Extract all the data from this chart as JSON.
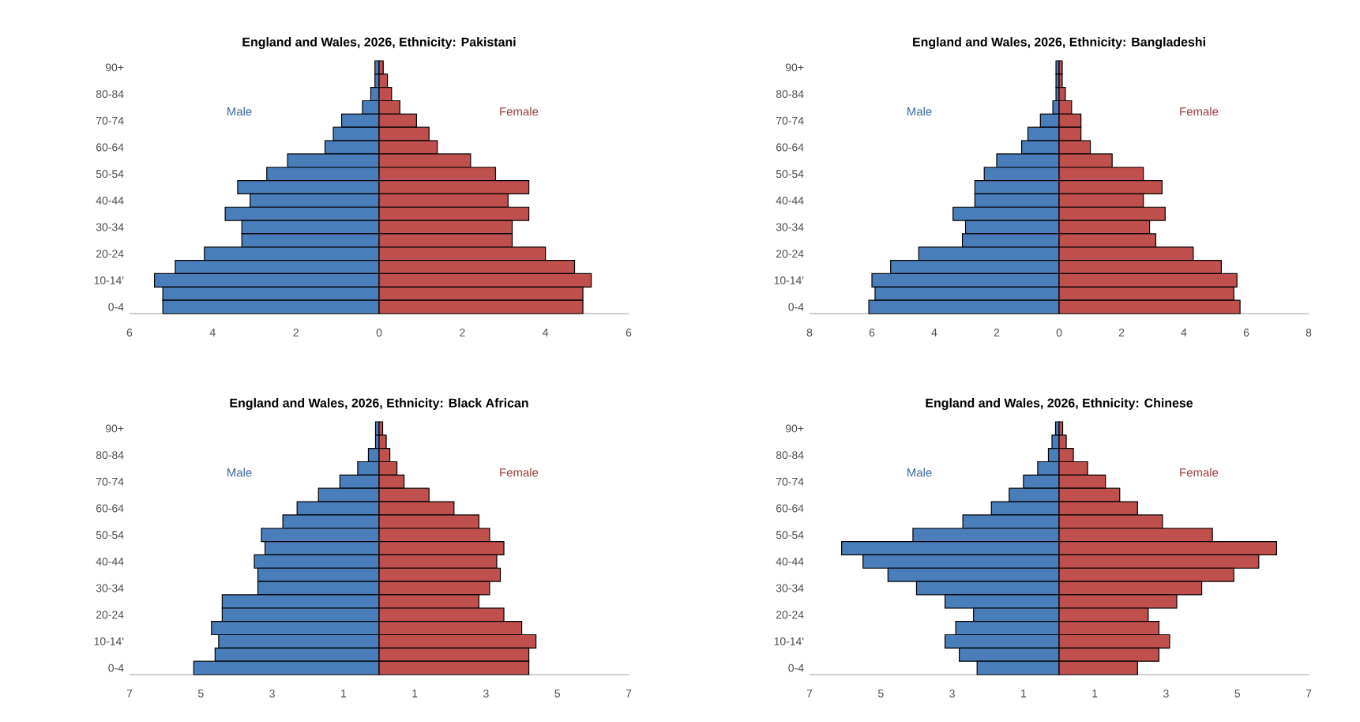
{
  "chart_data": [
    {
      "type": "bar",
      "orientation": "horizontal",
      "stacked": true,
      "title": "England and Wales, 2026, Ethnicity: Pakistani",
      "categories": [
        "90+",
        null,
        "80-84",
        null,
        "70-74",
        null,
        "60-64",
        null,
        "50-54",
        null,
        "40-44",
        null,
        "30-34",
        null,
        "20-24",
        null,
        "10-14'",
        null,
        "0-4"
      ],
      "series": [
        {
          "name": "Male",
          "color": "#4a7ebb",
          "values": [
            -0.1,
            -0.1,
            -0.2,
            -0.4,
            -0.9,
            -1.1,
            -1.3,
            -2.2,
            -2.7,
            -3.4,
            -3.1,
            -3.7,
            -3.3,
            -3.3,
            -4.2,
            -4.9,
            -5.4,
            -5.2,
            -5.2
          ]
        },
        {
          "name": "Female",
          "color": "#c0504d",
          "values": [
            0.1,
            0.2,
            0.3,
            0.5,
            0.9,
            1.2,
            1.4,
            2.2,
            2.8,
            3.6,
            3.1,
            3.6,
            3.2,
            3.2,
            4.0,
            4.7,
            5.1,
            4.9,
            4.9
          ]
        }
      ],
      "xlim": [
        -6,
        6
      ],
      "xticks": [
        {
          "value": -6,
          "label": "6"
        },
        {
          "value": -4,
          "label": "4"
        },
        {
          "value": -2,
          "label": "2"
        },
        0,
        2,
        4,
        6
      ]
    },
    {
      "type": "bar",
      "orientation": "horizontal",
      "stacked": true,
      "title": "England and Wales, 2026, Ethnicity: Bangladeshi",
      "categories": [
        "90+",
        null,
        "80-84",
        null,
        "70-74",
        null,
        "60-64",
        null,
        "50-54",
        null,
        "40-44",
        null,
        "30-34",
        null,
        "20-24",
        null,
        "10-14'",
        null,
        "0-4"
      ],
      "series": [
        {
          "name": "Male",
          "color": "#4a7ebb",
          "values": [
            -0.1,
            -0.1,
            -0.1,
            -0.2,
            -0.6,
            -1.0,
            -1.2,
            -2.0,
            -2.4,
            -2.7,
            -2.7,
            -3.4,
            -3.0,
            -3.1,
            -4.5,
            -5.4,
            -6.0,
            -5.9,
            -6.1
          ]
        },
        {
          "name": "Female",
          "color": "#c0504d",
          "values": [
            0.1,
            0.1,
            0.2,
            0.4,
            0.7,
            0.7,
            1.0,
            1.7,
            2.7,
            3.3,
            2.7,
            3.4,
            2.9,
            3.1,
            4.3,
            5.2,
            5.7,
            5.6,
            5.8
          ]
        }
      ],
      "xlim": [
        -8,
        8
      ],
      "xticks": [
        {
          "value": -8,
          "label": "8"
        },
        {
          "value": -6,
          "label": "6"
        },
        {
          "value": -4,
          "label": "4"
        },
        {
          "value": -2,
          "label": "2"
        },
        0,
        2,
        4,
        6,
        8
      ]
    },
    {
      "type": "bar",
      "orientation": "horizontal",
      "stacked": true,
      "title": "England and Wales, 2026, Ethnicity: Black African",
      "categories": [
        "90+",
        null,
        "80-84",
        null,
        "70-74",
        null,
        "60-64",
        null,
        "50-54",
        null,
        "40-44",
        null,
        "30-34",
        null,
        "20-24",
        null,
        "10-14'",
        null,
        "0-4"
      ],
      "series": [
        {
          "name": "Male",
          "color": "#4a7ebb",
          "values": [
            -0.1,
            -0.1,
            -0.3,
            -0.6,
            -1.1,
            -1.7,
            -2.3,
            -2.7,
            -3.3,
            -3.2,
            -3.5,
            -3.4,
            -3.4,
            -4.4,
            -4.4,
            -4.7,
            -4.5,
            -4.6,
            -5.2
          ]
        },
        {
          "name": "Female",
          "color": "#c0504d",
          "values": [
            0.1,
            0.2,
            0.3,
            0.5,
            0.7,
            1.4,
            2.1,
            2.8,
            3.1,
            3.5,
            3.3,
            3.4,
            3.1,
            2.8,
            3.5,
            4.0,
            4.4,
            4.2,
            4.2
          ]
        }
      ],
      "xlim": [
        -7,
        7
      ],
      "xticks": [
        {
          "value": -7,
          "label": "7"
        },
        {
          "value": -5,
          "label": "5"
        },
        {
          "value": -3,
          "label": "3"
        },
        {
          "value": -1,
          "label": "1"
        },
        1,
        3,
        5,
        7
      ]
    },
    {
      "type": "bar",
      "orientation": "horizontal",
      "stacked": true,
      "title": "England and Wales, 2026, Ethnicity: Chinese",
      "categories": [
        "90+",
        null,
        "80-84",
        null,
        "70-74",
        null,
        "60-64",
        null,
        "50-54",
        null,
        "40-44",
        null,
        "30-34",
        null,
        "20-24",
        null,
        "10-14'",
        null,
        "0-4"
      ],
      "series": [
        {
          "name": "Male",
          "color": "#4a7ebb",
          "values": [
            -0.1,
            -0.2,
            -0.3,
            -0.6,
            -1.0,
            -1.4,
            -1.9,
            -2.7,
            -4.1,
            -6.1,
            -5.5,
            -4.8,
            -4.0,
            -3.2,
            -2.4,
            -2.9,
            -3.2,
            -2.8,
            -2.3
          ]
        },
        {
          "name": "Female",
          "color": "#c0504d",
          "values": [
            0.1,
            0.2,
            0.4,
            0.8,
            1.3,
            1.7,
            2.2,
            2.9,
            4.3,
            6.1,
            5.6,
            4.9,
            4.0,
            3.3,
            2.5,
            2.8,
            3.1,
            2.8,
            2.2
          ]
        }
      ],
      "xlim": [
        -7,
        7
      ],
      "xticks": [
        {
          "value": -7,
          "label": "7"
        },
        {
          "value": -5,
          "label": "5"
        },
        {
          "value": -3,
          "label": "3"
        },
        {
          "value": -1,
          "label": "1"
        },
        1,
        3,
        5,
        7
      ]
    }
  ]
}
